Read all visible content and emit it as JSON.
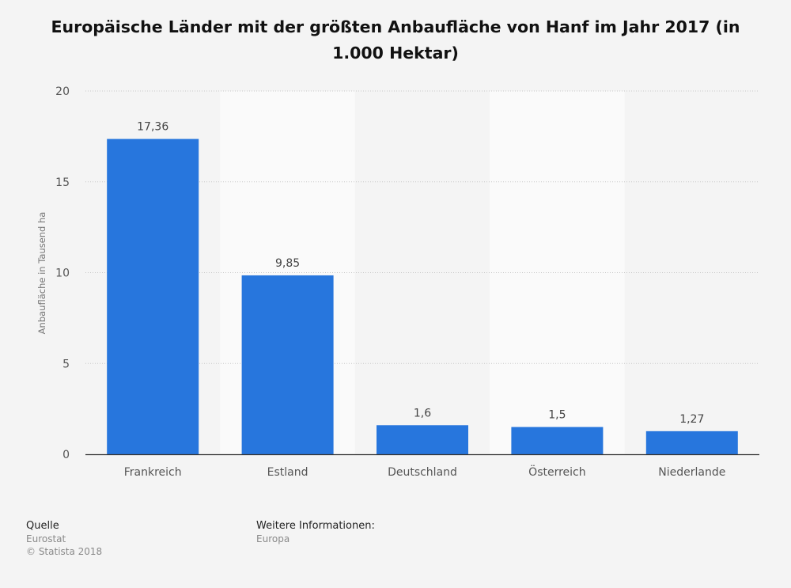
{
  "title": "Europäische Länder mit der größten Anbaufläche von Hanf im Jahr 2017 (in 1.000 Hektar)",
  "chart_data": {
    "type": "bar",
    "categories": [
      "Frankreich",
      "Estland",
      "Deutschland",
      "Österreich",
      "Niederlande"
    ],
    "values": [
      17.36,
      9.85,
      1.6,
      1.5,
      1.27
    ],
    "data_labels": [
      "17,36",
      "9,85",
      "1,6",
      "1,5",
      "1,27"
    ],
    "ylabel": "Anbaufläche in Tausend ha",
    "xlabel": "",
    "ylim": [
      0,
      20
    ],
    "yticks": [
      0,
      5,
      10,
      15,
      20
    ],
    "grid": true,
    "bar_color": "#2776dd"
  },
  "footer": {
    "source_heading": "Quelle",
    "source": "Eurostat",
    "copyright": "© Statista 2018",
    "info_heading": "Weitere Informationen:",
    "info": "Europa"
  }
}
